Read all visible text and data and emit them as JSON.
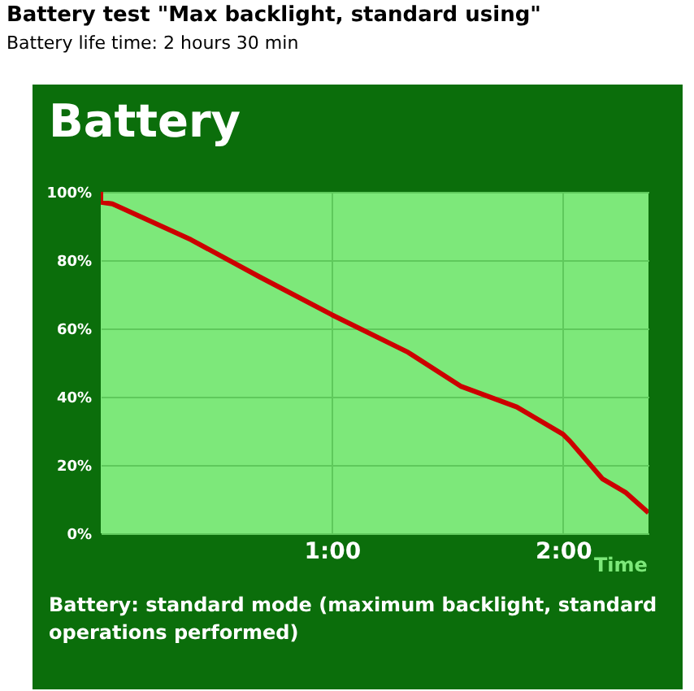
{
  "chart_data": {
    "type": "line",
    "title": "Battery test \"Max backlight, standard using\"",
    "subtitle": "Battery life time: 2 hours 30 min",
    "xlabel": "Time",
    "annotations": [
      "Battery",
      "Battery: standard mode (maximum backlight, standard operations performed)"
    ],
    "x": [
      0,
      0,
      0.05,
      0.39,
      0.69,
      1.0,
      1.33,
      1.56,
      1.8,
      2.0,
      2.03,
      2.17,
      2.27,
      2.37
    ],
    "series": [
      {
        "color": "#cc0000",
        "values": [
          100,
          97,
          96.5,
          86,
          75,
          64,
          53,
          43,
          37,
          29,
          27,
          16,
          12,
          6
        ]
      }
    ],
    "xlim": [
      0,
      2.37
    ],
    "ylim": [
      0,
      100
    ],
    "xticks": [
      {
        "value": 1,
        "label": "1:00"
      },
      {
        "value": 2,
        "label": "2:00"
      }
    ],
    "yticks": [
      {
        "value": 0,
        "label": "0%"
      },
      {
        "value": 20,
        "label": "20%"
      },
      {
        "value": 40,
        "label": "40%"
      },
      {
        "value": 60,
        "label": "60%"
      },
      {
        "value": 80,
        "label": "80%"
      },
      {
        "value": 100,
        "label": "100%"
      }
    ],
    "grid": true
  }
}
